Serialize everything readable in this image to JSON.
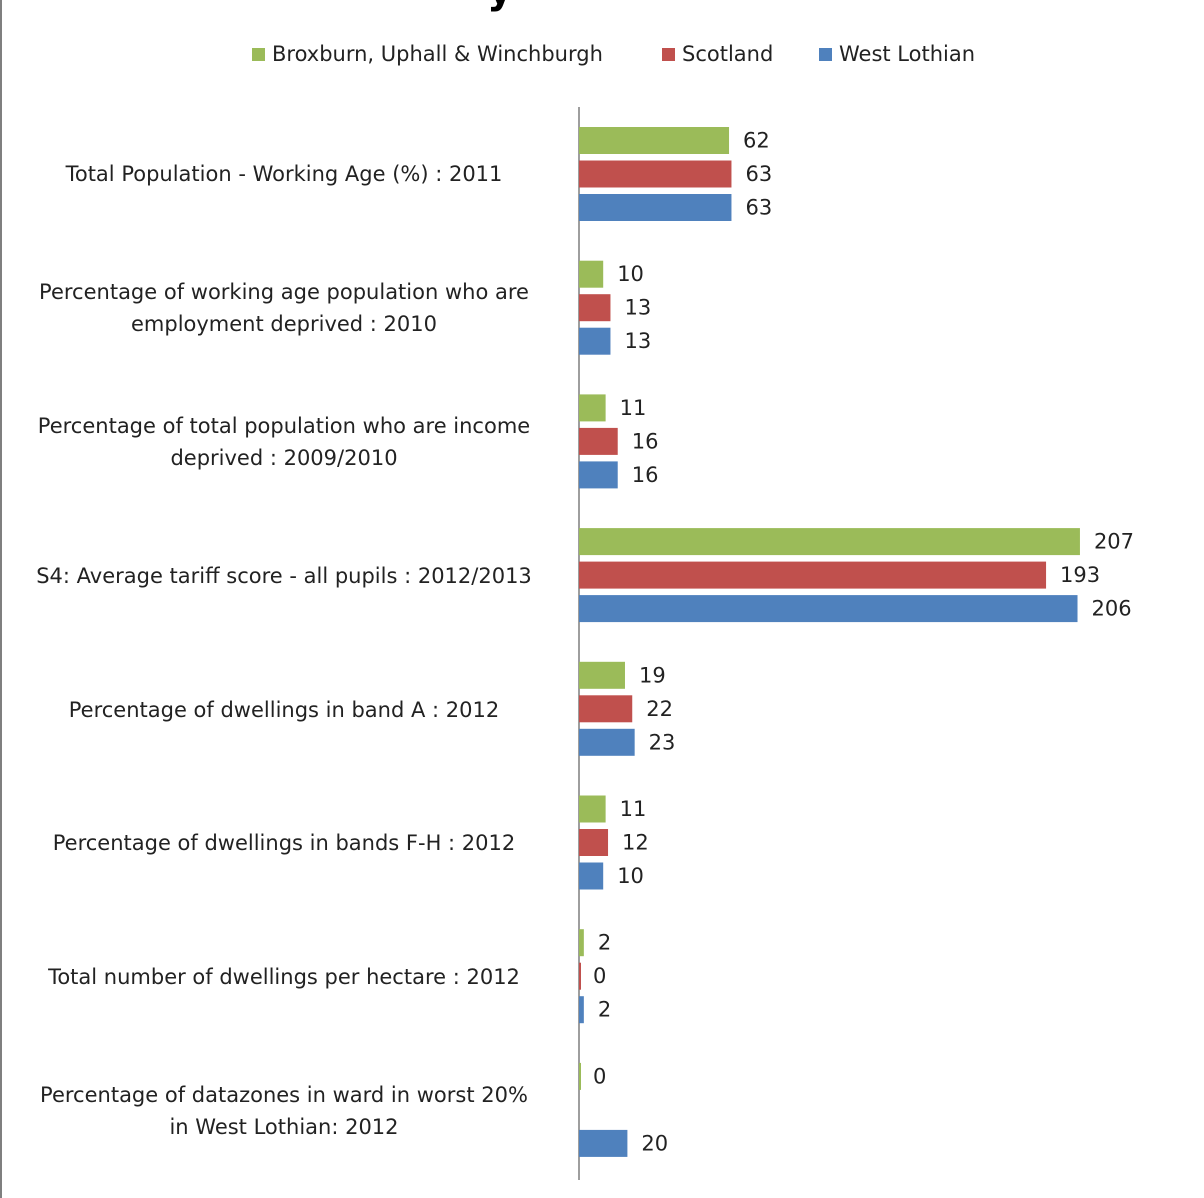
{
  "colors": {
    "broxburn": "#9bbb59",
    "scotland": "#c0504d",
    "west_lothian": "#4f81bd",
    "axis": "#7f7f7f"
  },
  "chart_data": {
    "type": "bar",
    "orientation": "horizontal",
    "title": "",
    "legend_position": "top",
    "grid": false,
    "categories": [
      "Total Population - Working Age (%) : 2011",
      "Percentage of working age population who are employment deprived : 2010",
      "Percentage of total population who are income deprived : 2009/2010",
      "S4: Average tariff score - all pupils : 2012/2013",
      "Percentage of dwellings in band A : 2012",
      "Percentage of dwellings in bands F-H : 2012",
      "Total number of dwellings per hectare : 2012",
      "Percentage of datazones in ward in worst 20% in West Lothian: 2012"
    ],
    "series": [
      {
        "name": "Broxburn, Uphall & Winchburgh",
        "color_key": "broxburn",
        "values": [
          62,
          10,
          11,
          207,
          19,
          11,
          2,
          0
        ],
        "labels": [
          "62",
          "10",
          "11",
          "207",
          "19",
          "11",
          "2",
          "0"
        ]
      },
      {
        "name": "Scotland",
        "color_key": "scotland",
        "values": [
          63,
          13,
          16,
          193,
          22,
          12,
          0,
          null
        ],
        "labels": [
          "63",
          "13",
          "16",
          "193",
          "22",
          "12",
          "0",
          ""
        ]
      },
      {
        "name": "West Lothian",
        "color_key": "west_lothian",
        "values": [
          63,
          13,
          16,
          206,
          23,
          10,
          2,
          20
        ],
        "labels": [
          "63",
          "13",
          "16",
          "206",
          "23",
          "10",
          "2",
          "20"
        ]
      }
    ],
    "xlim": [
      0,
      240
    ]
  }
}
